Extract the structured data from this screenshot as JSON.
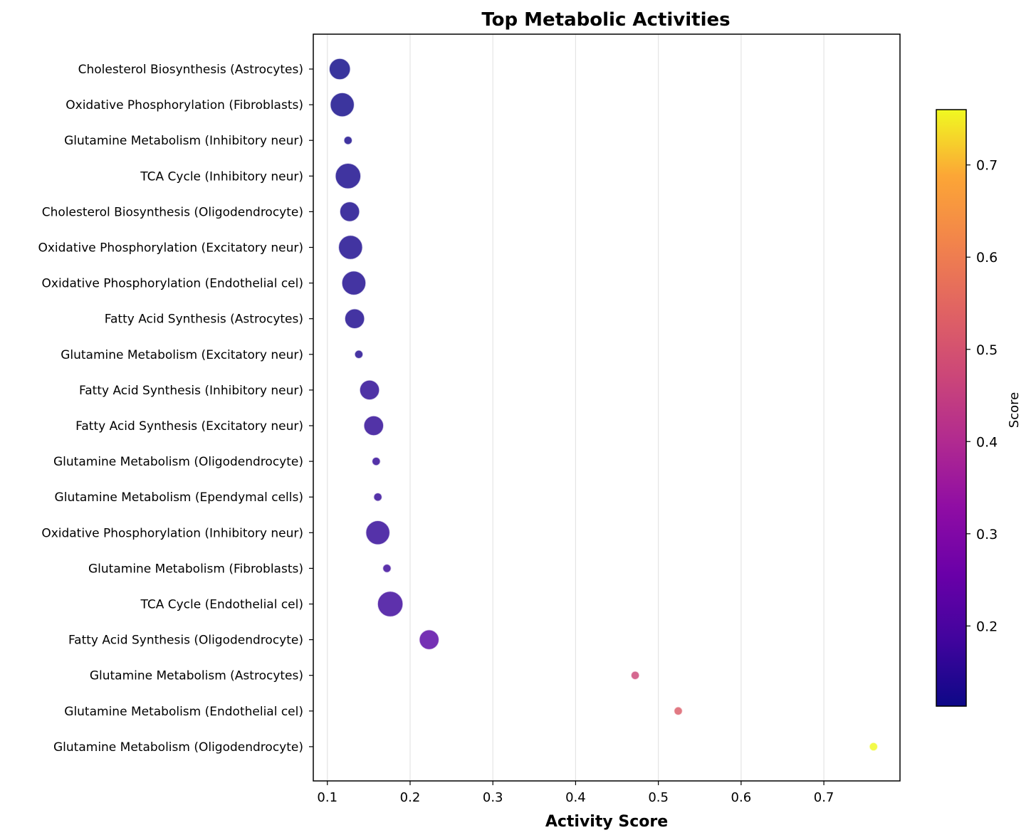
{
  "chart_data": {
    "type": "scatter",
    "title": "Top Metabolic Activities",
    "xlabel": "Activity Score",
    "ylabel": "",
    "xlim": [
      0.083,
      0.792
    ],
    "x_ticks": [
      0.1,
      0.2,
      0.3,
      0.4,
      0.5,
      0.6,
      0.7
    ],
    "x_tick_labels": [
      "0.1",
      "0.2",
      "0.3",
      "0.4",
      "0.5",
      "0.6",
      "0.7"
    ],
    "grid": "x-major",
    "colormap": "plasma",
    "colorbar": {
      "label": "Score",
      "range": [
        0.113,
        0.76
      ],
      "ticks": [
        0.2,
        0.3,
        0.4,
        0.5,
        0.6,
        0.7
      ],
      "tick_labels": [
        "0.2",
        "0.3",
        "0.4",
        "0.5",
        "0.6",
        "0.7"
      ]
    },
    "size_note": "marker size varies by category",
    "points": [
      {
        "label": "Cholesterol Biosynthesis (Astrocytes)",
        "x": 0.115,
        "score": 0.115,
        "size": 15
      },
      {
        "label": "Oxidative Phosphorylation (Fibroblasts)",
        "x": 0.118,
        "score": 0.118,
        "size": 17
      },
      {
        "label": "Glutamine Metabolism (Inhibitory neur)",
        "x": 0.125,
        "score": 0.125,
        "size": 6
      },
      {
        "label": "TCA Cycle (Inhibitory neur)",
        "x": 0.125,
        "score": 0.125,
        "size": 18
      },
      {
        "label": "Cholesterol Biosynthesis (Oligodendrocyte)",
        "x": 0.127,
        "score": 0.127,
        "size": 14
      },
      {
        "label": "Oxidative Phosphorylation (Excitatory neur)",
        "x": 0.128,
        "score": 0.128,
        "size": 17
      },
      {
        "label": "Oxidative Phosphorylation (Endothelial cel)",
        "x": 0.132,
        "score": 0.132,
        "size": 17
      },
      {
        "label": "Fatty Acid Synthesis (Astrocytes)",
        "x": 0.133,
        "score": 0.133,
        "size": 14
      },
      {
        "label": "Glutamine Metabolism (Excitatory neur)",
        "x": 0.138,
        "score": 0.138,
        "size": 6
      },
      {
        "label": "Fatty Acid Synthesis (Inhibitory neur)",
        "x": 0.151,
        "score": 0.151,
        "size": 14
      },
      {
        "label": "Fatty Acid Synthesis (Excitatory neur)",
        "x": 0.156,
        "score": 0.156,
        "size": 14
      },
      {
        "label": "Glutamine Metabolism (Oligodendrocyte)",
        "x": 0.159,
        "score": 0.159,
        "size": 6
      },
      {
        "label": "Glutamine Metabolism (Ependymal cells)",
        "x": 0.161,
        "score": 0.161,
        "size": 6
      },
      {
        "label": "Oxidative Phosphorylation (Inhibitory neur)",
        "x": 0.161,
        "score": 0.161,
        "size": 17
      },
      {
        "label": "Glutamine Metabolism (Fibroblasts)",
        "x": 0.172,
        "score": 0.172,
        "size": 6
      },
      {
        "label": "TCA Cycle (Endothelial cel)",
        "x": 0.176,
        "score": 0.176,
        "size": 18
      },
      {
        "label": "Fatty Acid Synthesis (Oligodendrocyte)",
        "x": 0.223,
        "score": 0.223,
        "size": 14
      },
      {
        "label": "Glutamine Metabolism (Astrocytes)",
        "x": 0.472,
        "score": 0.472,
        "size": 6
      },
      {
        "label": "Glutamine Metabolism (Endothelial cel)",
        "x": 0.524,
        "score": 0.524,
        "size": 6
      },
      {
        "label": "Glutamine Metabolism (Oligodendrocyte)",
        "x": 0.76,
        "score": 0.76,
        "size": 6
      }
    ]
  }
}
